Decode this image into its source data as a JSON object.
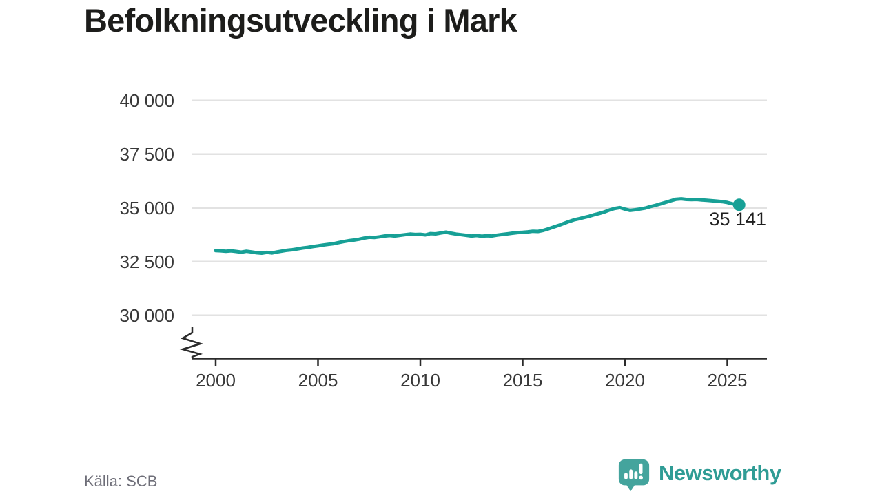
{
  "page": {
    "title": "Befolkningsutveckling i Mark",
    "source": "Källa: SCB",
    "brand": {
      "name": "Newsworthy",
      "icon": "newsworthy-speech-bubble-bar-chart-icon"
    }
  },
  "colors": {
    "line": "#17a096",
    "grid": "#e2e2e2",
    "axis": "#2b2b2b",
    "title_text": "#1d1d1b",
    "tick_text": "#383838",
    "annotation_text": "#1f1f1f",
    "source_text": "#6e6e78",
    "brand_teal": "#2f9c95",
    "logo_bubble": "#44a49d"
  },
  "chart_data": {
    "type": "line",
    "title": "Befolkningsutveckling i Mark",
    "xlabel": "",
    "ylabel": "",
    "ylim": [
      29400,
      40600
    ],
    "xlim": [
      2000,
      2027
    ],
    "grid": "horizontal",
    "axis_break": true,
    "source": "Källa: SCB",
    "y_ticks": [
      {
        "value": 30000,
        "label": "30 000"
      },
      {
        "value": 32500,
        "label": "32 500"
      },
      {
        "value": 35000,
        "label": "35 000"
      },
      {
        "value": 37500,
        "label": "37 500"
      },
      {
        "value": 40000,
        "label": "40 000"
      }
    ],
    "x_ticks": [
      {
        "value": 2000,
        "label": "2000"
      },
      {
        "value": 2005,
        "label": "2005"
      },
      {
        "value": 2010,
        "label": "2010"
      },
      {
        "value": 2015,
        "label": "2015"
      },
      {
        "value": 2020,
        "label": "2020"
      },
      {
        "value": 2025,
        "label": "2025"
      }
    ],
    "end_label": "35 141",
    "end_value": 35141,
    "series": [
      {
        "points": [
          [
            2000,
            33010
          ],
          [
            2000.25,
            33000
          ],
          [
            2000.5,
            32980
          ],
          [
            2000.75,
            33000
          ],
          [
            2001,
            32970
          ],
          [
            2001.25,
            32940
          ],
          [
            2001.5,
            32980
          ],
          [
            2001.75,
            32950
          ],
          [
            2002,
            32910
          ],
          [
            2002.25,
            32890
          ],
          [
            2002.5,
            32930
          ],
          [
            2002.75,
            32900
          ],
          [
            2003,
            32950
          ],
          [
            2003.25,
            32990
          ],
          [
            2003.5,
            33030
          ],
          [
            2003.75,
            33050
          ],
          [
            2004,
            33090
          ],
          [
            2004.25,
            33130
          ],
          [
            2004.5,
            33160
          ],
          [
            2004.75,
            33200
          ],
          [
            2005,
            33230
          ],
          [
            2005.25,
            33270
          ],
          [
            2005.5,
            33300
          ],
          [
            2005.75,
            33330
          ],
          [
            2006,
            33380
          ],
          [
            2006.25,
            33430
          ],
          [
            2006.5,
            33470
          ],
          [
            2006.75,
            33500
          ],
          [
            2007,
            33540
          ],
          [
            2007.25,
            33590
          ],
          [
            2007.5,
            33630
          ],
          [
            2007.75,
            33620
          ],
          [
            2008,
            33650
          ],
          [
            2008.25,
            33690
          ],
          [
            2008.5,
            33710
          ],
          [
            2008.75,
            33690
          ],
          [
            2009,
            33720
          ],
          [
            2009.25,
            33750
          ],
          [
            2009.5,
            33780
          ],
          [
            2009.75,
            33760
          ],
          [
            2010,
            33770
          ],
          [
            2010.25,
            33740
          ],
          [
            2010.5,
            33800
          ],
          [
            2010.75,
            33790
          ],
          [
            2011,
            33830
          ],
          [
            2011.25,
            33870
          ],
          [
            2011.5,
            33820
          ],
          [
            2011.75,
            33780
          ],
          [
            2012,
            33750
          ],
          [
            2012.25,
            33720
          ],
          [
            2012.5,
            33690
          ],
          [
            2012.75,
            33710
          ],
          [
            2013,
            33680
          ],
          [
            2013.25,
            33700
          ],
          [
            2013.5,
            33690
          ],
          [
            2013.75,
            33730
          ],
          [
            2014,
            33760
          ],
          [
            2014.25,
            33790
          ],
          [
            2014.5,
            33820
          ],
          [
            2014.75,
            33850
          ],
          [
            2015,
            33860
          ],
          [
            2015.25,
            33880
          ],
          [
            2015.5,
            33910
          ],
          [
            2015.75,
            33900
          ],
          [
            2016,
            33950
          ],
          [
            2016.25,
            34020
          ],
          [
            2016.5,
            34100
          ],
          [
            2016.75,
            34180
          ],
          [
            2017,
            34270
          ],
          [
            2017.25,
            34360
          ],
          [
            2017.5,
            34440
          ],
          [
            2017.75,
            34490
          ],
          [
            2018,
            34550
          ],
          [
            2018.25,
            34610
          ],
          [
            2018.5,
            34680
          ],
          [
            2018.75,
            34740
          ],
          [
            2019,
            34810
          ],
          [
            2019.25,
            34900
          ],
          [
            2019.5,
            34970
          ],
          [
            2019.75,
            35010
          ],
          [
            2020,
            34940
          ],
          [
            2020.25,
            34880
          ],
          [
            2020.5,
            34910
          ],
          [
            2020.75,
            34950
          ],
          [
            2021,
            34990
          ],
          [
            2021.25,
            35060
          ],
          [
            2021.5,
            35120
          ],
          [
            2021.75,
            35190
          ],
          [
            2022,
            35260
          ],
          [
            2022.25,
            35330
          ],
          [
            2022.5,
            35400
          ],
          [
            2022.75,
            35420
          ],
          [
            2023,
            35390
          ],
          [
            2023.25,
            35380
          ],
          [
            2023.5,
            35390
          ],
          [
            2023.75,
            35370
          ],
          [
            2024,
            35350
          ],
          [
            2024.25,
            35330
          ],
          [
            2024.5,
            35310
          ],
          [
            2024.75,
            35290
          ],
          [
            2025,
            35250
          ],
          [
            2025.25,
            35190
          ],
          [
            2025.58,
            35141
          ]
        ]
      }
    ]
  }
}
